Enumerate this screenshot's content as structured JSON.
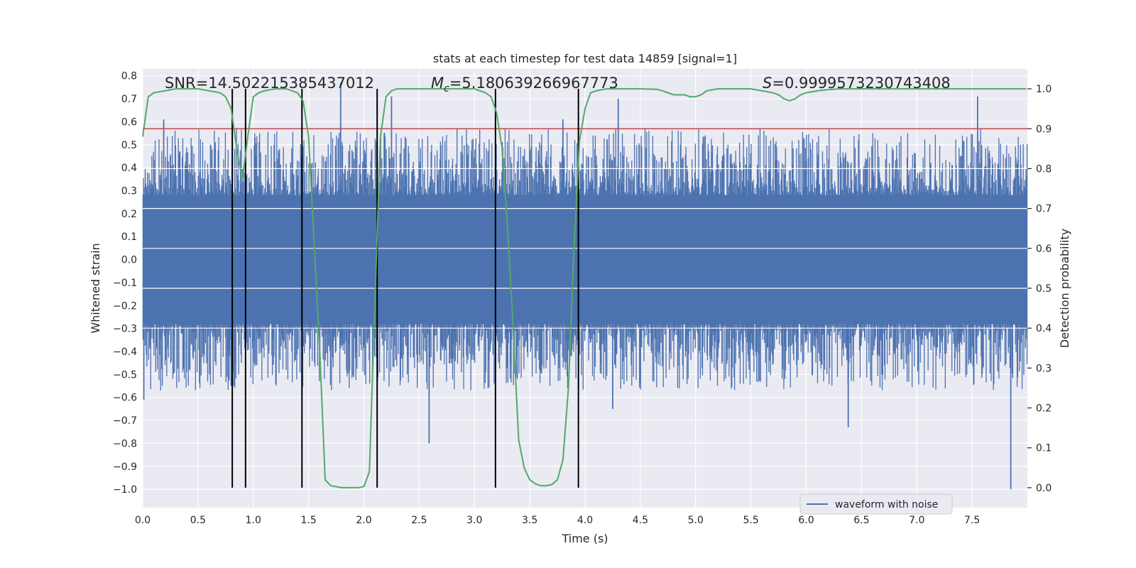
{
  "chart_data": {
    "type": "line",
    "title": "stats at each timestep for test data 14859 [signal=1]",
    "xlabel": "Time (s)",
    "ylabel_left": "Whitened strain",
    "ylabel_right": "Detection probability",
    "xlim": [
      0.0,
      8.0
    ],
    "ylim_left": [
      -1.08,
      0.83
    ],
    "ylim_right": [
      -0.05,
      1.05
    ],
    "x_ticks": [
      "0.0",
      "0.5",
      "1.0",
      "1.5",
      "2.0",
      "2.5",
      "3.0",
      "3.5",
      "4.0",
      "4.5",
      "5.0",
      "5.5",
      "6.0",
      "6.5",
      "7.0",
      "7.5"
    ],
    "x_tick_values": [
      0.0,
      0.5,
      1.0,
      1.5,
      2.0,
      2.5,
      3.0,
      3.5,
      4.0,
      4.5,
      5.0,
      5.5,
      6.0,
      6.5,
      7.0,
      7.5
    ],
    "y_left_ticks": [
      "0.8",
      "0.7",
      "0.6",
      "0.5",
      "0.4",
      "0.3",
      "0.2",
      "0.1",
      "0.0",
      "−0.1",
      "−0.2",
      "−0.3",
      "−0.4",
      "−0.5",
      "−0.6",
      "−0.7",
      "−0.8",
      "−0.9",
      "−1.0"
    ],
    "y_left_tick_values": [
      0.8,
      0.7,
      0.6,
      0.5,
      0.4,
      0.3,
      0.2,
      0.1,
      0.0,
      -0.1,
      -0.2,
      -0.3,
      -0.4,
      -0.5,
      -0.6,
      -0.7,
      -0.8,
      -0.9,
      -1.0
    ],
    "y_right_ticks": [
      "1.0",
      "0.9",
      "0.8",
      "0.7",
      "0.6",
      "0.5",
      "0.4",
      "0.3",
      "0.2",
      "0.1",
      "0.0"
    ],
    "y_right_tick_values": [
      1.0,
      0.9,
      0.8,
      0.7,
      0.6,
      0.5,
      0.4,
      0.3,
      0.2,
      0.1,
      0.0
    ],
    "annotations": {
      "snr": "SNR=14.502215385437012",
      "mc_symbol": "M",
      "mc_sub": "c",
      "mc_value": "=5.180639266967773",
      "s_symbol": "S",
      "s_value": "=0.9999573230743408"
    },
    "threshold_right": 0.9,
    "event_lines_x": [
      0.81,
      0.93,
      1.44,
      2.12,
      3.19,
      3.94
    ],
    "waveform": {
      "name": "waveform with noise",
      "seed": 14859,
      "n_samples": 1600,
      "core_amplitude": 0.28,
      "peak_extent_typical": 0.45,
      "notable_spikes": [
        {
          "x": 0.01,
          "y": -0.61
        },
        {
          "x": 0.19,
          "y": 0.61
        },
        {
          "x": 0.8,
          "y": -0.55
        },
        {
          "x": 1.79,
          "y": 0.77
        },
        {
          "x": 2.25,
          "y": 0.71
        },
        {
          "x": 2.59,
          "y": -0.8
        },
        {
          "x": 3.8,
          "y": 0.61
        },
        {
          "x": 4.3,
          "y": 0.7
        },
        {
          "x": 4.25,
          "y": -0.65
        },
        {
          "x": 6.38,
          "y": -0.73
        },
        {
          "x": 7.55,
          "y": 0.71
        },
        {
          "x": 7.85,
          "y": -1.0
        }
      ]
    },
    "detection_probability": {
      "x": [
        0.0,
        0.05,
        0.1,
        0.2,
        0.3,
        0.5,
        0.6,
        0.7,
        0.75,
        0.8,
        0.85,
        0.9,
        0.95,
        1.0,
        1.05,
        1.1,
        1.2,
        1.3,
        1.35,
        1.4,
        1.45,
        1.5,
        1.6,
        1.65,
        1.7,
        1.8,
        1.9,
        1.95,
        2.0,
        2.05,
        2.1,
        2.15,
        2.2,
        2.25,
        2.3,
        2.5,
        2.75,
        3.0,
        3.05,
        3.1,
        3.15,
        3.2,
        3.25,
        3.3,
        3.35,
        3.4,
        3.45,
        3.5,
        3.55,
        3.6,
        3.65,
        3.7,
        3.75,
        3.8,
        3.85,
        3.9,
        3.95,
        4.0,
        4.05,
        4.1,
        4.2,
        4.5,
        4.65,
        4.7,
        4.8,
        4.9,
        4.95,
        5.0,
        5.05,
        5.1,
        5.2,
        5.4,
        5.5,
        5.6,
        5.7,
        5.75,
        5.8,
        5.85,
        5.9,
        5.95,
        6.0,
        6.1,
        6.2,
        6.3,
        6.5,
        7.0,
        7.5,
        7.99
      ],
      "y": [
        0.88,
        0.98,
        0.99,
        0.995,
        1.0,
        1.0,
        0.995,
        0.99,
        0.98,
        0.95,
        0.85,
        0.77,
        0.88,
        0.98,
        0.99,
        0.995,
        1.0,
        1.0,
        0.995,
        0.99,
        0.97,
        0.88,
        0.35,
        0.02,
        0.005,
        0.0,
        0.0,
        0.0,
        0.003,
        0.04,
        0.47,
        0.88,
        0.98,
        0.995,
        1.0,
        1.0,
        1.0,
        1.0,
        0.995,
        0.99,
        0.98,
        0.94,
        0.85,
        0.65,
        0.4,
        0.12,
        0.05,
        0.02,
        0.01,
        0.005,
        0.005,
        0.008,
        0.02,
        0.07,
        0.25,
        0.6,
        0.87,
        0.95,
        0.99,
        0.995,
        1.0,
        1.0,
        0.999,
        0.995,
        0.985,
        0.985,
        0.98,
        0.98,
        0.985,
        0.995,
        1.0,
        1.0,
        1.0,
        0.995,
        0.99,
        0.985,
        0.975,
        0.97,
        0.975,
        0.985,
        0.99,
        0.995,
        0.998,
        1.0,
        1.0,
        1.0,
        1.0,
        1.0
      ]
    },
    "colors": {
      "background": "#eaeaf2",
      "grid": "#ffffff",
      "waveform": "#4c72b0",
      "probability": "#55a868",
      "threshold": "#c44e52",
      "event_lines": "#000000",
      "text": "#262626"
    },
    "legend": {
      "label": "waveform with noise",
      "position": "lower-right"
    }
  }
}
